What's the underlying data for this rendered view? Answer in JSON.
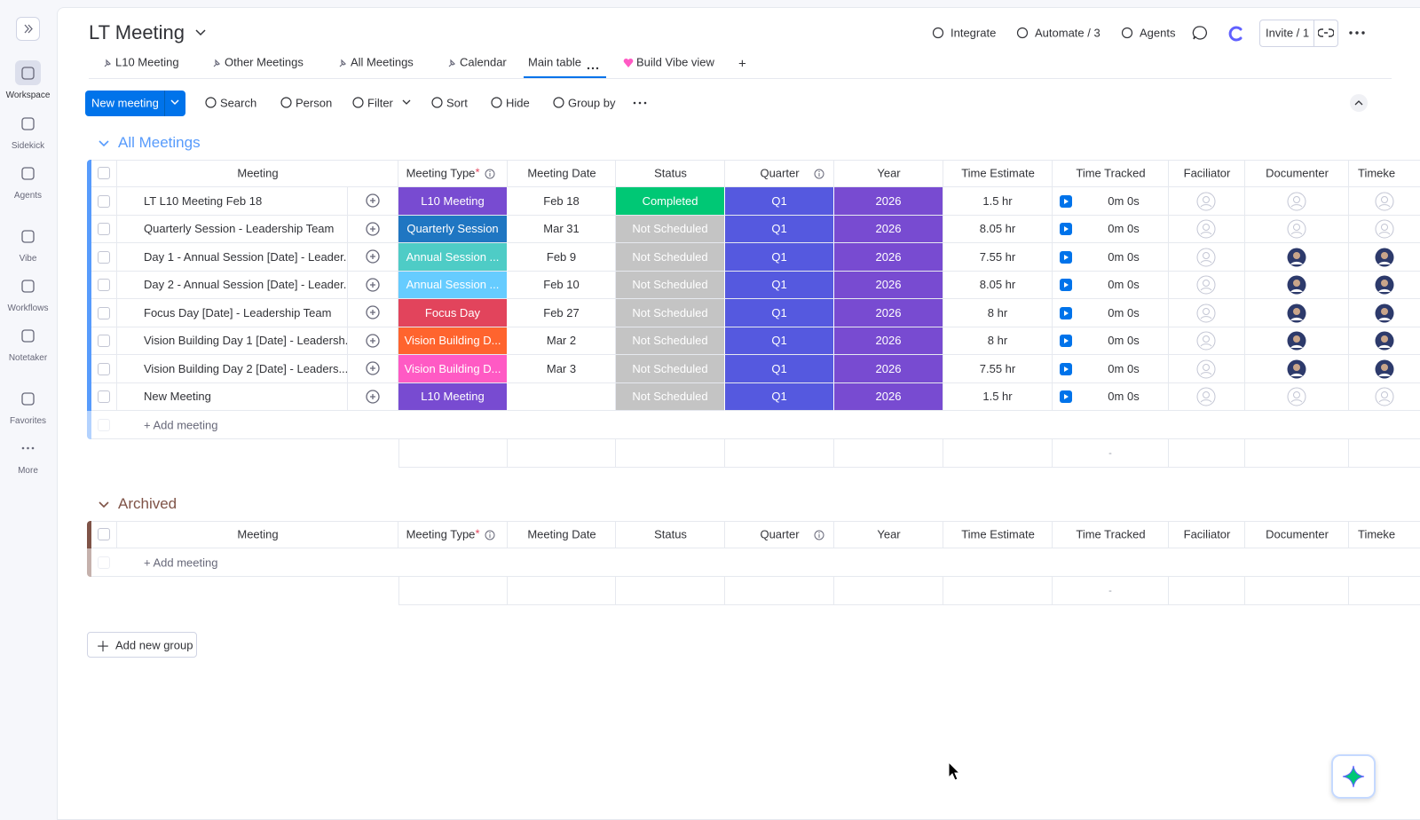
{
  "sidebar": {
    "items": [
      "Workspace",
      "Sidekick",
      "Agents",
      "Vibe",
      "Workflows",
      "Notetaker",
      "Favorites",
      "More"
    ]
  },
  "header": {
    "title": "LT Meeting",
    "actions": [
      "Integrate",
      "Automate / 3",
      "Agents"
    ],
    "invite": "Invite / 1"
  },
  "tabs": {
    "items": [
      "L10 Meeting",
      "Other Meetings",
      "All Meetings",
      "Calendar",
      "Main table",
      "Build Vibe view"
    ],
    "active": 4,
    "add": "+"
  },
  "toolbar": {
    "primary": "New meeting",
    "items": [
      "Search",
      "Person",
      "Filter",
      "Sort",
      "Hide",
      "Group by"
    ]
  },
  "table": {
    "columns": [
      "Meeting",
      "Meeting Type",
      "Meeting Date",
      "Status",
      "Quarter",
      "Year",
      "Time Estimate",
      "Time Tracked",
      "Faciliator",
      "Documenter",
      "Timeke"
    ],
    "required_mark": "*",
    "quarter_color": "#5559df",
    "year_color": "#784bd1",
    "groups": [
      {
        "title": "All Meetings",
        "color": "#579bfc",
        "add_row": "+ Add meeting",
        "summary": "-",
        "rows": [
          {
            "meeting": "LT L10 Meeting Feb 18",
            "type": "L10 Meeting",
            "type_color": "#784bd1",
            "date": "Feb 18",
            "status": "Completed",
            "status_color": "#00c875",
            "quarter": "Q1",
            "year": 2026,
            "estimate": "1.5 hr",
            "tracked": "0m 0s",
            "documenter_avatar": false,
            "timekeeper_avatar": false
          },
          {
            "meeting": "Quarterly Session - Leadership Team",
            "type": "Quarterly Session",
            "type_color": "#1f76c2",
            "date": "Mar 31",
            "status": "Not Scheduled",
            "status_color": "#c4c4c4",
            "quarter": "Q1",
            "year": 2026,
            "estimate": "8.05 hr",
            "tracked": "0m 0s",
            "documenter_avatar": false,
            "timekeeper_avatar": false
          },
          {
            "meeting": "Day 1 - Annual Session [Date] - Leader...",
            "type": "Annual Session ...",
            "type_color": "#4eccc6",
            "date": "Feb 9",
            "status": "Not Scheduled",
            "status_color": "#c4c4c4",
            "quarter": "Q1",
            "year": 2026,
            "estimate": "7.55 hr",
            "tracked": "0m 0s",
            "documenter_avatar": true,
            "timekeeper_avatar": true
          },
          {
            "meeting": "Day 2 - Annual Session [Date] - Leader...",
            "type": "Annual Session ...",
            "type_color": "#66ccff",
            "date": "Feb 10",
            "status": "Not Scheduled",
            "status_color": "#c4c4c4",
            "quarter": "Q1",
            "year": 2026,
            "estimate": "8.05 hr",
            "tracked": "0m 0s",
            "documenter_avatar": true,
            "timekeeper_avatar": true
          },
          {
            "meeting": "Focus Day [Date] - Leadership Team",
            "type": "Focus Day",
            "type_color": "#e2445c",
            "date": "Feb 27",
            "status": "Not Scheduled",
            "status_color": "#c4c4c4",
            "quarter": "Q1",
            "year": 2026,
            "estimate": "8 hr",
            "tracked": "0m 0s",
            "documenter_avatar": true,
            "timekeeper_avatar": true
          },
          {
            "meeting": "Vision Building Day 1 [Date] - Leadersh...",
            "type": "Vision Building D...",
            "type_color": "#ff642e",
            "date": "Mar 2",
            "status": "Not Scheduled",
            "status_color": "#c4c4c4",
            "quarter": "Q1",
            "year": 2026,
            "estimate": "8 hr",
            "tracked": "0m 0s",
            "documenter_avatar": true,
            "timekeeper_avatar": true
          },
          {
            "meeting": "Vision Building Day 2 [Date] - Leaders...",
            "type": "Vision Building D...",
            "type_color": "#ff5ac4",
            "date": "Mar 3",
            "status": "Not Scheduled",
            "status_color": "#c4c4c4",
            "quarter": "Q1",
            "year": 2026,
            "estimate": "7.55 hr",
            "tracked": "0m 0s",
            "documenter_avatar": true,
            "timekeeper_avatar": true
          },
          {
            "meeting": "New Meeting",
            "type": "L10 Meeting",
            "type_color": "#784bd1",
            "date": null,
            "status": "Not Scheduled",
            "status_color": "#c4c4c4",
            "quarter": "Q1",
            "year": 2026,
            "estimate": "1.5 hr",
            "tracked": "0m 0s",
            "documenter_avatar": false,
            "timekeeper_avatar": false
          }
        ]
      },
      {
        "title": "Archived",
        "color": "#7f5347",
        "add_row": "+ Add meeting",
        "summary": "-",
        "rows": []
      }
    ]
  },
  "add_group": "Add new group"
}
